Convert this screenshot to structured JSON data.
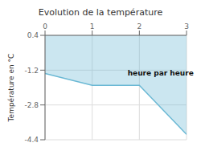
{
  "chart_data": {
    "type": "line",
    "title": "Evolution de la température",
    "ylabel": "Température en °C",
    "x": [
      0,
      1,
      2,
      3
    ],
    "values": [
      -1.35,
      -1.9,
      -1.9,
      -4.15
    ],
    "color": "#6ab8d4",
    "xlim": [
      0,
      3
    ],
    "ylim": [
      -4.4,
      0.4
    ],
    "xticks": [
      0,
      1,
      2,
      3
    ],
    "yticks": [
      0.4,
      -1.2,
      -2.8,
      -4.4
    ],
    "grid": true,
    "annotations": [
      {
        "text": "heure par heure",
        "x": 1.75,
        "y": -1.2
      }
    ]
  }
}
